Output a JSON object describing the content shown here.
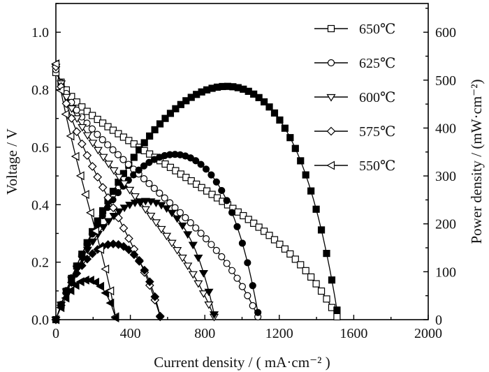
{
  "chart_data": {
    "type": "line",
    "title": "",
    "xlabel": "Current density / ( mA·cm⁻² )",
    "ylabel": "Voltage / V",
    "y2label": "Power density / (mW·cm⁻²)",
    "xlim": [
      0,
      2000
    ],
    "ylim": [
      0,
      1.1
    ],
    "y2lim": [
      0,
      660
    ],
    "xticks": [
      0,
      400,
      800,
      1200,
      1600,
      2000
    ],
    "yticks": [
      0.0,
      0.2,
      0.4,
      0.6,
      0.8,
      1.0
    ],
    "y2ticks": [
      0,
      100,
      200,
      300,
      400,
      500,
      600
    ],
    "xtick_labels": [
      "0",
      "400",
      "800",
      "1200",
      "1600",
      "2000"
    ],
    "ytick_labels": [
      "0.0",
      "0.2",
      "0.4",
      "0.6",
      "0.8",
      "1.0"
    ],
    "y2tick_labels": [
      "0",
      "100",
      "200",
      "300",
      "400",
      "500",
      "600"
    ],
    "grid": false,
    "legend_position": "top-right",
    "series": [
      {
        "name": "650℃",
        "marker": "square",
        "ocv": 0.86,
        "kinetic_drop": 0.075,
        "ohmic_slope": 0.0004147,
        "limiting_current": 1510,
        "peak_power": 487
      },
      {
        "name": "625℃",
        "marker": "circle",
        "ocv": 0.87,
        "kinetic_drop": 0.1,
        "ohmic_slope": 0.000592,
        "limiting_current": 1085,
        "peak_power": 345
      },
      {
        "name": "600℃",
        "marker": "triangle-down",
        "ocv": 0.88,
        "kinetic_drop": 0.12,
        "ohmic_slope": 0.000778,
        "limiting_current": 850,
        "peak_power": 248
      },
      {
        "name": "575℃",
        "marker": "diamond",
        "ocv": 0.88,
        "kinetic_drop": 0.12,
        "ohmic_slope": 0.00121,
        "limiting_current": 560,
        "peak_power": 158
      },
      {
        "name": "550℃",
        "marker": "triangle-left",
        "ocv": 0.89,
        "kinetic_drop": 0.12,
        "ohmic_slope": 0.00219,
        "limiting_current": 320,
        "peak_power": 83
      }
    ]
  }
}
